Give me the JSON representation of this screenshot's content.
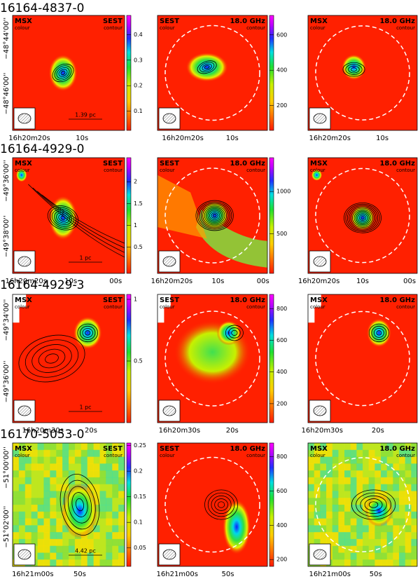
{
  "rows": [
    {
      "title": "16164-4837-0",
      "panels": [
        {
          "left": "MSX",
          "left_sub": "colour",
          "right": "SEST",
          "right_sub": "contour",
          "scalebar": "1.39 pc",
          "xticks": [
            "16h20m20s",
            "10s"
          ],
          "yticks": [
            "−48°44'00''",
            "−48°46'00''"
          ],
          "cbar": {
            "lim": [
              0.025,
              0.475
            ],
            "ticks": [
              0.1,
              0.2,
              0.3,
              0.4
            ]
          }
        },
        {
          "left": "SEST",
          "left_sub": "colour",
          "right": "18.0 GHz",
          "right_sub": "contour",
          "xticks": [
            "16h20m20s",
            "10s"
          ],
          "cbar": {
            "lim": [
              60,
              710
            ],
            "ticks": [
              200,
              400,
              600
            ]
          }
        },
        {
          "left": "MSX",
          "left_sub": "colour",
          "right": "18.0 GHz",
          "right_sub": "contour",
          "xticks": [
            "16h20m20s",
            "10s"
          ]
        }
      ]
    },
    {
      "title": "16164-4929-0",
      "panels": [
        {
          "left": "MSX",
          "left_sub": "colour",
          "right": "SEST",
          "right_sub": "contour",
          "scalebar": "1 pc",
          "xticks": [
            "16h20m20s",
            "10s",
            "00s"
          ],
          "yticks": [
            "−49°36'00''",
            "−49°38'00''"
          ],
          "cbar": {
            "lim": [
              -0.1,
              2.55
            ],
            "ticks": [
              0.5,
              1,
              1.5,
              2
            ]
          }
        },
        {
          "left": "SEST",
          "left_sub": "colour",
          "right": "18.0 GHz",
          "right_sub": "contour",
          "xticks": [
            "16h20m20s",
            "10s",
            "00s"
          ],
          "cbar": {
            "lim": [
              30,
              1400
            ],
            "ticks": [
              500,
              1000
            ]
          }
        },
        {
          "left": "MSX",
          "left_sub": "colour",
          "right": "18.0 GHz",
          "right_sub": "contour",
          "xticks": [
            "16h20m20s",
            "10s",
            "00s"
          ]
        }
      ]
    },
    {
      "title": "16164-4929-3",
      "panels": [
        {
          "left": "MSX",
          "left_sub": "colour",
          "right": "SEST",
          "right_sub": "contour",
          "scalebar": "1 pc",
          "xticks": [
            "16h20m30s",
            "20s"
          ],
          "yticks": [
            "−49°34'00''",
            "−49°36'00''"
          ],
          "cbar": {
            "lim": [
              0,
              1.04
            ],
            "ticks": [
              0.5,
              1
            ]
          }
        },
        {
          "left": "SEST",
          "left_sub": "colour",
          "right": "18.0 GHz",
          "right_sub": "contour",
          "xticks": [
            "16h20m30s",
            "20s"
          ],
          "cbar": {
            "lim": [
              80,
              890
            ],
            "ticks": [
              200,
              400,
              600,
              800
            ]
          }
        },
        {
          "left": "MSX",
          "left_sub": "colour",
          "right": "18.0 GHz",
          "right_sub": "contour",
          "xticks": [
            "16h20m30s",
            "20s"
          ]
        }
      ]
    },
    {
      "title": "16170-5053-0",
      "panels": [
        {
          "left": "MSX",
          "left_sub": "colour",
          "right": "SEST",
          "right_sub": "contour",
          "scalebar": "4.42 pc",
          "xticks": [
            "16h21m00s",
            "50s"
          ],
          "yticks": [
            "−51°00'00''",
            "−51°02'00''"
          ],
          "cbar": {
            "lim": [
              0.014,
              0.255
            ],
            "ticks": [
              0.05,
              0.1,
              0.15,
              0.2,
              0.25
            ]
          }
        },
        {
          "left": "SEST",
          "left_sub": "colour",
          "right": "18.0 GHz",
          "right_sub": "contour",
          "xticks": [
            "16h21m00s",
            "50s"
          ],
          "cbar": {
            "lim": [
              160,
              880
            ],
            "ticks": [
              200,
              400,
              600,
              800
            ]
          }
        },
        {
          "left": "MSX",
          "left_sub": "colour",
          "right": "18.0 GHz",
          "right_sub": "contour",
          "xticks": [
            "16h21m00s",
            "50s"
          ]
        }
      ]
    }
  ]
}
